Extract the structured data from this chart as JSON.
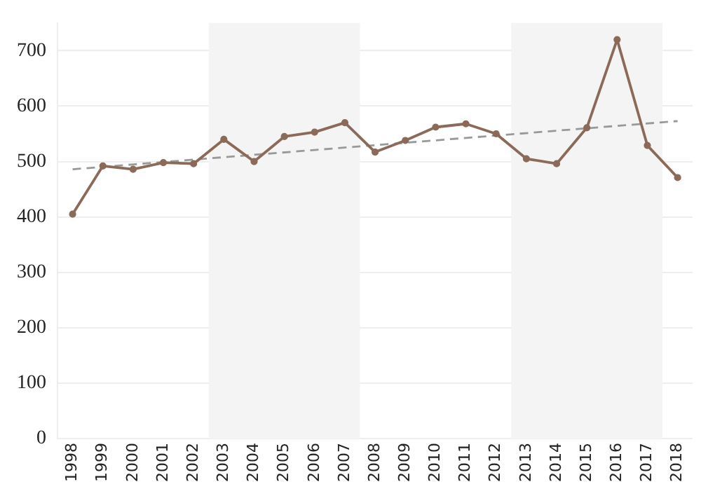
{
  "chart_data": {
    "type": "line",
    "categories": [
      "1998",
      "1999",
      "2000",
      "2001",
      "2002",
      "2003",
      "2004",
      "2005",
      "2006",
      "2007",
      "2008",
      "2009",
      "2010",
      "2011",
      "2012",
      "2013",
      "2014",
      "2015",
      "2016",
      "2017",
      "2018"
    ],
    "series": [
      {
        "color": "#8b6a5a",
        "values": [
          405,
          492,
          486,
          498,
          496,
          540,
          500,
          545,
          553,
          570,
          517,
          538,
          562,
          568,
          550,
          505,
          496,
          561,
          720,
          529,
          471
        ],
        "marker": "circle",
        "line_style": "solid"
      },
      {
        "type": "line",
        "color": "#999999",
        "values": [
          486,
          null,
          null,
          null,
          null,
          null,
          null,
          null,
          null,
          null,
          null,
          null,
          null,
          null,
          null,
          null,
          null,
          null,
          null,
          null,
          573
        ],
        "marker": "none",
        "line_style": "dashed"
      }
    ],
    "ylim": [
      0,
      750
    ],
    "yticks": [
      0,
      100,
      200,
      300,
      400,
      500,
      600,
      700
    ],
    "grid": "y",
    "legend": false,
    "bands": [
      {
        "axis": "x",
        "from": "2003",
        "to": "2007",
        "color": "#f4f4f4"
      },
      {
        "axis": "x",
        "from": "2013",
        "to": "2017",
        "color": "#f4f4f4"
      }
    ]
  }
}
